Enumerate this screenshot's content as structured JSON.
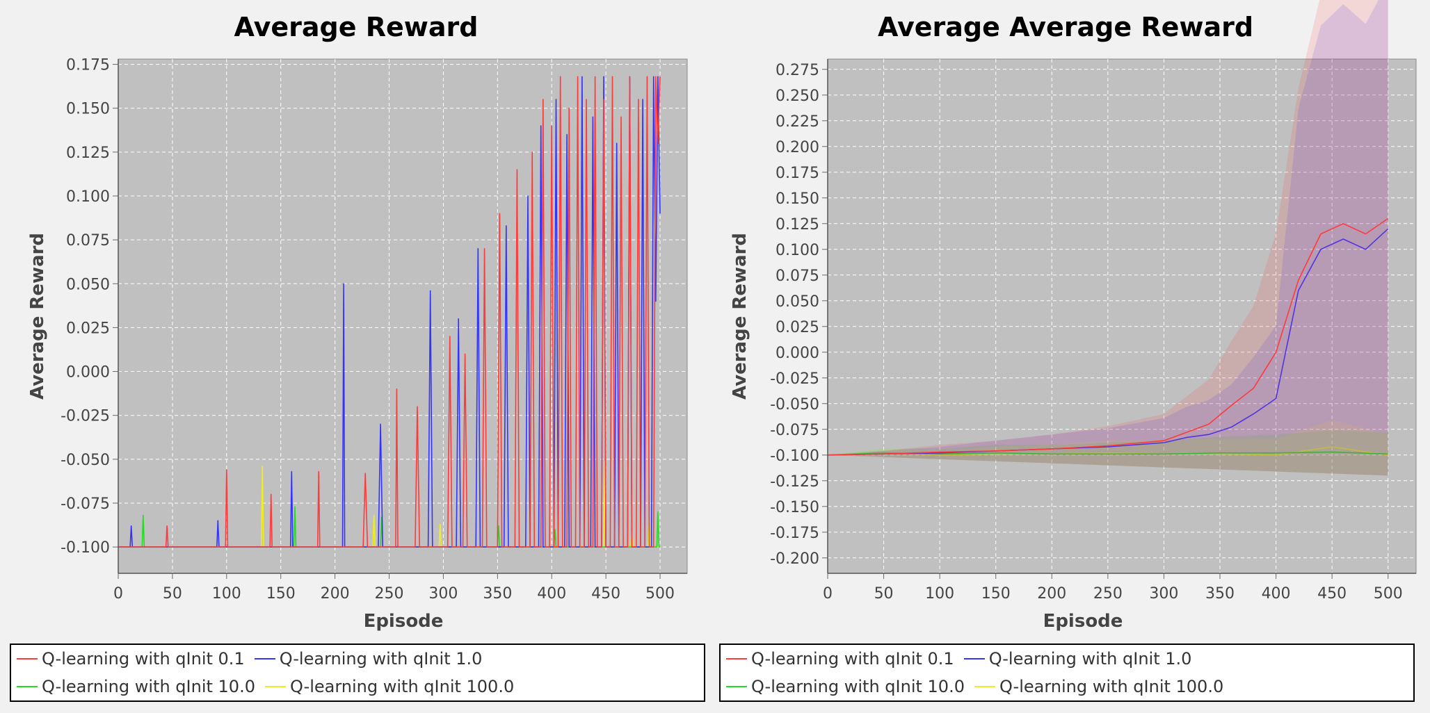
{
  "colors": {
    "q01": "#ff3a3a",
    "q1": "#3333ff",
    "q10": "#22dd22",
    "q100": "#eeee22",
    "plot_bg": "#c0c0c0",
    "grid": "#ffffff"
  },
  "chart_data": [
    {
      "type": "line",
      "title": "Average Reward",
      "xlabel": "Episode",
      "ylabel": "Average Reward",
      "xlim": [
        0,
        525
      ],
      "ylim": [
        -0.115,
        0.178
      ],
      "xticks": [
        0,
        50,
        100,
        150,
        200,
        250,
        300,
        350,
        400,
        450,
        500
      ],
      "xtick_labels": [
        "0",
        "50",
        "100",
        "150",
        "200",
        "250",
        "300",
        "350",
        "400",
        "450",
        "500"
      ],
      "yticks": [
        -0.1,
        -0.075,
        -0.05,
        -0.025,
        0.0,
        0.025,
        0.05,
        0.075,
        0.1,
        0.125,
        0.15,
        0.175
      ],
      "ytick_labels": [
        "-0.100",
        "-0.075",
        "-0.050",
        "-0.025",
        "0.000",
        "0.025",
        "0.050",
        "0.075",
        "0.100",
        "0.125",
        "0.150",
        "0.175"
      ],
      "grid": true,
      "band": false,
      "legend_position": "bottom",
      "series": [
        {
          "name": "Q-learning with qInit 0.1",
          "color": "#ff3a3a",
          "x": [
            0,
            44,
            45,
            46,
            99,
            100,
            101,
            140,
            141,
            142,
            184,
            185,
            186,
            226,
            228,
            230,
            256,
            257,
            258,
            274,
            276,
            278,
            304,
            306,
            308,
            318,
            320,
            322,
            336,
            338,
            340,
            350,
            352,
            354,
            366,
            368,
            370,
            380,
            382,
            384,
            390,
            392,
            394,
            398,
            400,
            402,
            406,
            408,
            410,
            414,
            416,
            418,
            422,
            424,
            426,
            430,
            432,
            434,
            438,
            440,
            442,
            446,
            448,
            450,
            454,
            456,
            458,
            462,
            464,
            466,
            470,
            472,
            474,
            478,
            480,
            482,
            486,
            488,
            490,
            494,
            496,
            498,
            500
          ],
          "values": [
            -0.1,
            -0.1,
            -0.088,
            -0.1,
            -0.1,
            -0.056,
            -0.1,
            -0.1,
            -0.07,
            -0.1,
            -0.1,
            -0.057,
            -0.1,
            -0.1,
            -0.058,
            -0.1,
            -0.1,
            -0.01,
            -0.1,
            -0.1,
            -0.02,
            -0.1,
            -0.1,
            0.02,
            -0.1,
            -0.1,
            0.01,
            -0.1,
            -0.1,
            0.07,
            -0.1,
            -0.1,
            0.09,
            -0.1,
            -0.1,
            0.115,
            -0.1,
            -0.1,
            0.125,
            -0.1,
            -0.1,
            0.155,
            -0.1,
            -0.1,
            0.14,
            -0.1,
            -0.1,
            0.168,
            -0.1,
            -0.1,
            0.15,
            -0.1,
            -0.1,
            0.168,
            -0.1,
            -0.1,
            0.155,
            -0.1,
            -0.1,
            0.168,
            -0.1,
            -0.1,
            0.155,
            -0.1,
            -0.1,
            0.168,
            -0.1,
            -0.1,
            0.145,
            -0.1,
            -0.1,
            0.168,
            -0.1,
            -0.1,
            0.155,
            -0.1,
            -0.1,
            0.168,
            -0.1,
            -0.1,
            0.168,
            0.13,
            0.168
          ]
        },
        {
          "name": "Q-learning with qInit 1.0",
          "color": "#3333ff",
          "x": [
            0,
            11,
            12,
            13,
            91,
            92,
            93,
            159,
            160,
            161,
            207,
            208,
            209,
            240,
            242,
            244,
            286,
            288,
            290,
            312,
            314,
            316,
            330,
            332,
            334,
            356,
            358,
            360,
            376,
            378,
            380,
            388,
            390,
            392,
            402,
            404,
            406,
            412,
            414,
            416,
            426,
            428,
            430,
            436,
            438,
            440,
            446,
            448,
            450,
            458,
            460,
            462,
            470,
            472,
            474,
            482,
            484,
            486,
            492,
            494,
            496,
            498,
            500
          ],
          "values": [
            -0.1,
            -0.1,
            -0.088,
            -0.1,
            -0.1,
            -0.085,
            -0.1,
            -0.1,
            -0.057,
            -0.1,
            -0.1,
            0.05,
            -0.1,
            -0.1,
            -0.03,
            -0.1,
            -0.1,
            0.046,
            -0.1,
            -0.1,
            0.03,
            -0.1,
            -0.1,
            0.07,
            -0.1,
            -0.1,
            0.083,
            -0.1,
            -0.1,
            0.1,
            -0.1,
            -0.1,
            0.14,
            -0.1,
            -0.1,
            0.155,
            -0.1,
            -0.1,
            0.135,
            -0.1,
            -0.1,
            0.168,
            -0.1,
            -0.1,
            0.145,
            -0.1,
            -0.1,
            0.168,
            -0.1,
            -0.1,
            0.13,
            -0.1,
            -0.1,
            0.168,
            -0.1,
            -0.1,
            0.155,
            -0.1,
            -0.1,
            0.168,
            0.04,
            0.168,
            0.09
          ]
        },
        {
          "name": "Q-learning with qInit 10.0",
          "color": "#22dd22",
          "x": [
            0,
            22,
            23,
            24,
            162,
            163,
            164,
            242,
            243,
            244,
            350,
            351,
            352,
            402,
            403,
            404,
            497,
            498,
            499,
            500
          ],
          "values": [
            -0.1,
            -0.1,
            -0.082,
            -0.1,
            -0.1,
            -0.077,
            -0.1,
            -0.1,
            -0.083,
            -0.1,
            -0.1,
            -0.088,
            -0.1,
            -0.1,
            -0.09,
            -0.1,
            -0.1,
            -0.08,
            -0.1,
            -0.1
          ]
        },
        {
          "name": "Q-learning with qInit 100.0",
          "color": "#eeee22",
          "x": [
            0,
            132,
            133,
            134,
            235,
            236,
            237,
            296,
            297,
            298,
            448,
            449,
            450,
            473,
            474,
            475,
            489,
            490,
            491,
            500
          ],
          "values": [
            -0.1,
            -0.1,
            -0.054,
            -0.1,
            -0.1,
            -0.082,
            -0.1,
            -0.1,
            -0.087,
            -0.1,
            -0.1,
            -0.051,
            -0.1,
            -0.1,
            -0.088,
            -0.1,
            -0.1,
            -0.085,
            -0.1,
            -0.1
          ]
        }
      ]
    },
    {
      "type": "line",
      "title": "Average Average Reward",
      "xlabel": "Episode",
      "ylabel": "Average Reward",
      "xlim": [
        0,
        525
      ],
      "ylim": [
        -0.215,
        0.285
      ],
      "xticks": [
        0,
        50,
        100,
        150,
        200,
        250,
        300,
        350,
        400,
        450,
        500
      ],
      "xtick_labels": [
        "0",
        "50",
        "100",
        "150",
        "200",
        "250",
        "300",
        "350",
        "400",
        "450",
        "500"
      ],
      "yticks": [
        -0.2,
        -0.175,
        -0.15,
        -0.125,
        -0.1,
        -0.075,
        -0.05,
        -0.025,
        0.0,
        0.025,
        0.05,
        0.075,
        0.1,
        0.125,
        0.15,
        0.175,
        0.2,
        0.225,
        0.25,
        0.275
      ],
      "ytick_labels": [
        "-0.200",
        "-0.175",
        "-0.150",
        "-0.125",
        "-0.100",
        "-0.075",
        "-0.050",
        "-0.025",
        "0.000",
        "0.025",
        "0.050",
        "0.075",
        "0.100",
        "0.125",
        "0.150",
        "0.175",
        "0.200",
        "0.225",
        "0.250",
        "0.275"
      ],
      "grid": true,
      "band": true,
      "legend_position": "bottom",
      "series": [
        {
          "name": "Q-learning with qInit 0.1",
          "color": "#ff3a3a",
          "x": [
            0,
            50,
            100,
            150,
            200,
            250,
            300,
            320,
            340,
            360,
            380,
            400,
            420,
            440,
            460,
            480,
            500
          ],
          "values": [
            -0.1,
            -0.099,
            -0.097,
            -0.096,
            -0.094,
            -0.091,
            -0.086,
            -0.078,
            -0.07,
            -0.052,
            -0.035,
            0.0,
            0.07,
            0.115,
            0.125,
            0.115,
            0.13
          ]
        },
        {
          "name": "Q-learning with qInit 1.0",
          "color": "#3333ff",
          "x": [
            0,
            50,
            100,
            150,
            200,
            250,
            300,
            320,
            340,
            360,
            380,
            400,
            420,
            440,
            460,
            480,
            500
          ],
          "values": [
            -0.1,
            -0.099,
            -0.098,
            -0.096,
            -0.094,
            -0.092,
            -0.088,
            -0.083,
            -0.08,
            -0.073,
            -0.06,
            -0.045,
            0.06,
            0.1,
            0.11,
            0.1,
            0.12
          ]
        },
        {
          "name": "Q-learning with qInit 10.0",
          "color": "#22dd22",
          "x": [
            0,
            50,
            100,
            150,
            200,
            250,
            300,
            350,
            400,
            450,
            500
          ],
          "values": [
            -0.1,
            -0.098,
            -0.099,
            -0.098,
            -0.099,
            -0.099,
            -0.099,
            -0.098,
            -0.098,
            -0.097,
            -0.099
          ]
        },
        {
          "name": "Q-learning with qInit 100.0",
          "color": "#eeee22",
          "x": [
            0,
            50,
            100,
            150,
            200,
            250,
            300,
            350,
            400,
            450,
            500
          ],
          "values": [
            -0.1,
            -0.098,
            -0.1,
            -0.099,
            -0.099,
            -0.098,
            -0.099,
            -0.099,
            -0.1,
            -0.092,
            -0.1
          ]
        }
      ]
    }
  ]
}
